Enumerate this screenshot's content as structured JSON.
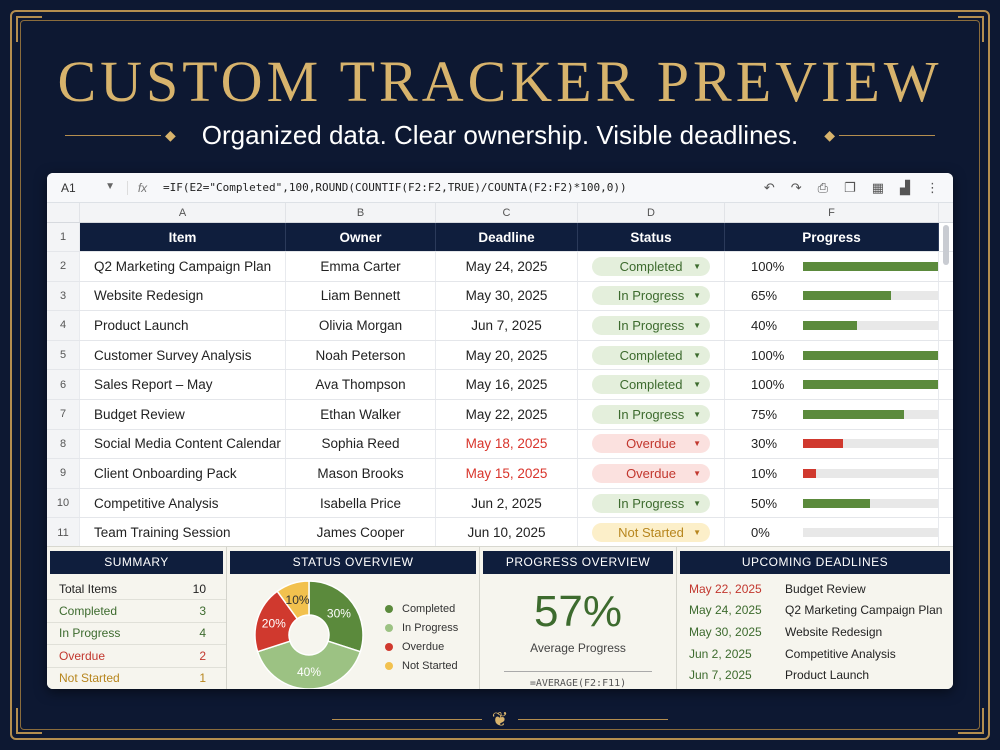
{
  "title": "CUSTOM TRACKER PREVIEW",
  "subtitle": "Organized data. Clear ownership. Visible deadlines.",
  "colors": {
    "gold": "#d7b36c",
    "navy": "#0f1e3d",
    "green": "#5b8a3c",
    "red": "#d0392e",
    "yellow": "#f2c14e",
    "light_green": "#9cc283"
  },
  "formula_bar": {
    "cell_ref": "A1",
    "fx": "fx",
    "formula": "=IF(E2=\"Completed\",100,ROUND(COUNTIF(F2:F2,TRUE)/COUNTA(F2:F2)*100,0))",
    "tools": [
      "undo-icon",
      "redo-icon",
      "print-icon",
      "copy-icon",
      "table-icon",
      "chart-icon",
      "more-icon"
    ]
  },
  "columns": [
    "A",
    "B",
    "C",
    "D",
    "F"
  ],
  "headers": [
    "Item",
    "Owner",
    "Deadline",
    "Status",
    "Progress"
  ],
  "rows": [
    {
      "num": "2",
      "item": "Q2 Marketing Campaign Plan",
      "owner": "Emma Carter",
      "deadline": "May 24, 2025",
      "status": "Completed",
      "status_key": "completed",
      "progress_label": "100%",
      "progress": 100,
      "overdue": false
    },
    {
      "num": "3",
      "item": "Website Redesign",
      "owner": "Liam Bennett",
      "deadline": "May 30, 2025",
      "status": "In Progress",
      "status_key": "inprogress",
      "progress_label": "65%",
      "progress": 65,
      "overdue": false
    },
    {
      "num": "4",
      "item": "Product Launch",
      "owner": "Olivia Morgan",
      "deadline": "Jun 7, 2025",
      "status": "In Progress",
      "status_key": "inprogress",
      "progress_label": "40%",
      "progress": 40,
      "overdue": false
    },
    {
      "num": "5",
      "item": "Customer Survey Analysis",
      "owner": "Noah Peterson",
      "deadline": "May 20, 2025",
      "status": "Completed",
      "status_key": "completed",
      "progress_label": "100%",
      "progress": 100,
      "overdue": false
    },
    {
      "num": "6",
      "item": "Sales Report – May",
      "owner": "Ava Thompson",
      "deadline": "May 16, 2025",
      "status": "Completed",
      "status_key": "completed",
      "progress_label": "100%",
      "progress": 100,
      "overdue": false
    },
    {
      "num": "7",
      "item": "Budget Review",
      "owner": "Ethan Walker",
      "deadline": "May 22, 2025",
      "status": "In Progress",
      "status_key": "inprogress",
      "progress_label": "75%",
      "progress": 75,
      "overdue": false
    },
    {
      "num": "8",
      "item": "Social Media Content Calendar",
      "owner": "Sophia Reed",
      "deadline": "May 18, 2025",
      "status": "Overdue",
      "status_key": "overdue",
      "progress_label": "30%",
      "progress": 30,
      "overdue": true
    },
    {
      "num": "9",
      "item": "Client Onboarding Pack",
      "owner": "Mason Brooks",
      "deadline": "May 15, 2025",
      "status": "Overdue",
      "status_key": "overdue",
      "progress_label": "10%",
      "progress": 10,
      "overdue": true
    },
    {
      "num": "10",
      "item": "Competitive Analysis",
      "owner": "Isabella Price",
      "deadline": "Jun 2, 2025",
      "status": "In Progress",
      "status_key": "inprogress",
      "progress_label": "50%",
      "progress": 50,
      "overdue": false
    },
    {
      "num": "11",
      "item": "Team Training Session",
      "owner": "James Cooper",
      "deadline": "Jun 10, 2025",
      "status": "Not Started",
      "status_key": "notstarted",
      "progress_label": "0%",
      "progress": 0,
      "overdue": false
    }
  ],
  "summary": {
    "title": "SUMMARY",
    "rows": [
      {
        "label": "Total Items",
        "value": "10",
        "color": "#222222"
      },
      {
        "label": "Completed",
        "value": "3",
        "color": "#3d6b2e"
      },
      {
        "label": "In Progress",
        "value": "4",
        "color": "#3d6b2e"
      },
      {
        "label": "Overdue",
        "value": "2",
        "color": "#c2372e"
      },
      {
        "label": "Not Started",
        "value": "1",
        "color": "#b7861e"
      }
    ]
  },
  "status_overview": {
    "title": "STATUS OVERVIEW",
    "legend": [
      {
        "label": "Completed",
        "color": "#5b8a3c"
      },
      {
        "label": "In Progress",
        "color": "#9cc283"
      },
      {
        "label": "Overdue",
        "color": "#d0392e"
      },
      {
        "label": "Not Started",
        "color": "#f2c14e"
      }
    ]
  },
  "chart_data": {
    "type": "pie",
    "title": "",
    "slices": [
      {
        "label": "Completed",
        "value": 30,
        "text": "30%",
        "color": "#5b8a3c"
      },
      {
        "label": "In Progress",
        "value": 40,
        "text": "40%",
        "color": "#9cc283"
      },
      {
        "label": "Overdue",
        "value": 20,
        "text": "20%",
        "color": "#d0392e"
      },
      {
        "label": "Not Started",
        "value": 10,
        "text": "10%",
        "color": "#f2c14e"
      }
    ],
    "legend_position": "right"
  },
  "progress_overview": {
    "title": "PROGRESS OVERVIEW",
    "value": "57%",
    "label": "Average Progress",
    "formula": "=AVERAGE(F2:F11)"
  },
  "upcoming": {
    "title": "UPCOMING DEADLINES",
    "rows": [
      {
        "date": "May 22, 2025",
        "task": "Budget Review",
        "color": "#c2372e"
      },
      {
        "date": "May 24, 2025",
        "task": "Q2 Marketing Campaign Plan",
        "color": "#3d6b2e"
      },
      {
        "date": "May 30, 2025",
        "task": "Website Redesign",
        "color": "#3d6b2e"
      },
      {
        "date": "Jun 2, 2025",
        "task": "Competitive Analysis",
        "color": "#3d6b2e"
      },
      {
        "date": "Jun 7, 2025",
        "task": "Product Launch",
        "color": "#3d6b2e"
      }
    ]
  }
}
